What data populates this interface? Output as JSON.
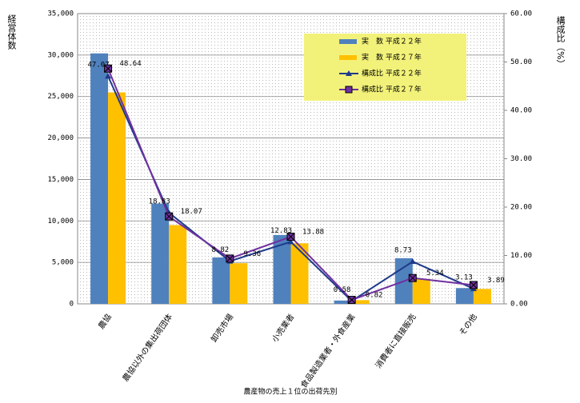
{
  "chart_data": {
    "type": "bar-line",
    "x_label": "農産物の売上１位の出荷先別",
    "y_label": "経営体数",
    "y2_label": "構成比（%）",
    "categories": [
      "農協",
      "農協以外の集出荷団体",
      "卸売市場",
      "小売業者",
      "食品製造業者・外食産業",
      "消費者に直接販売",
      "その他"
    ],
    "series": [
      {
        "name": "実　数 平成２２年",
        "kind": "bar",
        "color": "#4f81bd",
        "values": [
          30200,
          12100,
          5600,
          8300,
          400,
          5500,
          1900
        ]
      },
      {
        "name": "実　数 平成２７年",
        "kind": "bar",
        "color": "#ffc000",
        "values": [
          25500,
          9500,
          4900,
          7300,
          450,
          3000,
          1800
        ]
      },
      {
        "name": "構成比 平成２２年",
        "kind": "line",
        "axis": "y2",
        "marker": "triangle",
        "color": "#1f3a8a",
        "values": [
          47.07,
          18.83,
          8.82,
          12.83,
          0.58,
          8.73,
          3.13
        ]
      },
      {
        "name": "構成比 平成２７年",
        "kind": "line",
        "axis": "y2",
        "marker": "square",
        "color": "#7030a0",
        "values": [
          48.64,
          18.07,
          9.36,
          13.88,
          0.82,
          5.34,
          3.89
        ]
      }
    ],
    "ylim": [
      0,
      35000
    ],
    "yticks": [
      0,
      {
        "value": 5000,
        "label": "5,000"
      },
      {
        "value": 10000,
        "label": "10,000"
      },
      {
        "value": 15000,
        "label": "15,000"
      },
      {
        "value": 20000,
        "label": "20,000"
      },
      {
        "value": 25000,
        "label": "25,000"
      },
      {
        "value": 30000,
        "label": "30,000"
      },
      {
        "value": 35000,
        "label": "35,000"
      }
    ],
    "y2lim": [
      0,
      60
    ],
    "y2ticks": [
      {
        "value": 0,
        "label": "0.00"
      },
      {
        "value": 10,
        "label": "10.00"
      },
      {
        "value": 20,
        "label": "20.00"
      },
      {
        "value": 30,
        "label": "30.00"
      },
      {
        "value": 40,
        "label": "40.00"
      },
      {
        "value": 50,
        "label": "50.00"
      },
      {
        "value": 60,
        "label": "60.00"
      }
    ],
    "grid": true,
    "legend": "upper-right"
  }
}
